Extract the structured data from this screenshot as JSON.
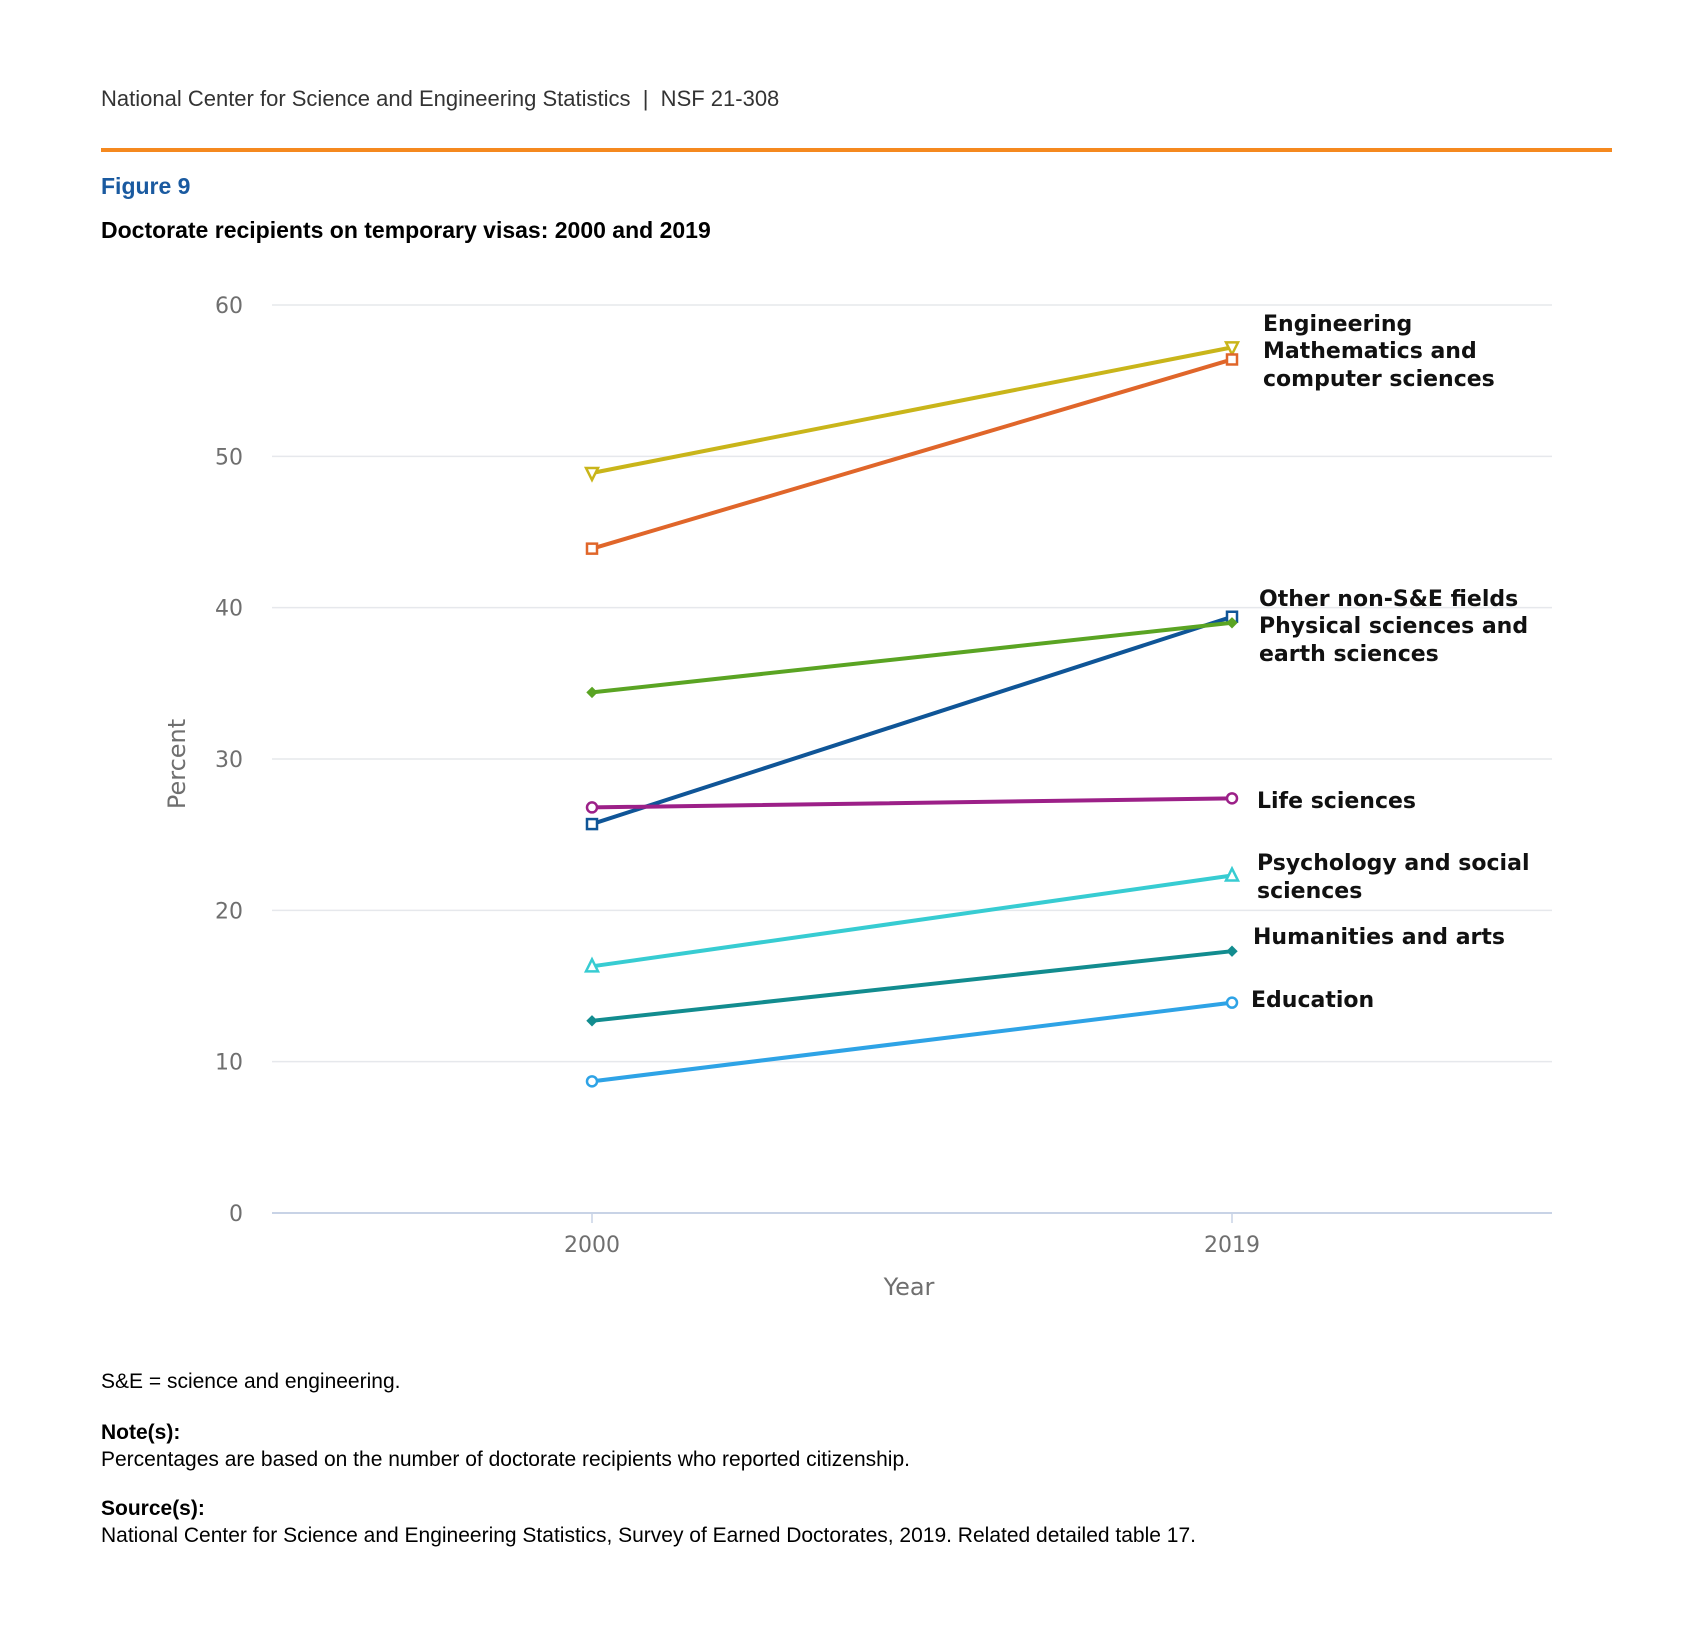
{
  "header": {
    "text": "National Center for Science and Engineering Statistics  |  NSF 21-308",
    "rule_color": "#f5891f"
  },
  "figure": {
    "label": "Figure 9",
    "title": "Doctorate recipients on temporary visas: 2000 and 2019"
  },
  "chart_data": {
    "type": "line",
    "x": [
      "2000",
      "2019"
    ],
    "xlabel": "Year",
    "ylabel": "Percent",
    "ylim": [
      0,
      60
    ],
    "yticks": [
      0,
      10,
      20,
      30,
      40,
      50,
      60
    ],
    "grid": true,
    "legend": "direct labels at line ends (right)",
    "series": [
      {
        "name": "Engineering",
        "values": [
          48.9,
          57.2
        ],
        "color": "#c9b51a",
        "marker": "triangle-down",
        "label_lines": [
          "Engineering"
        ]
      },
      {
        "name": "Mathematics and computer sciences",
        "values": [
          43.9,
          56.4
        ],
        "color": "#e0662a",
        "marker": "square",
        "label_lines": [
          "Mathematics and",
          "computer sciences"
        ]
      },
      {
        "name": "Other non-S&E fields",
        "values": [
          25.7,
          39.4
        ],
        "color": "#0f5597",
        "marker": "square",
        "label_lines": [
          "Other non-S&E fields"
        ]
      },
      {
        "name": "Physical sciences and earth sciences",
        "values": [
          34.4,
          39.0
        ],
        "color": "#5aa423",
        "marker": "diamond",
        "label_lines": [
          "Physical sciences and",
          "earth sciences"
        ]
      },
      {
        "name": "Life sciences",
        "values": [
          26.8,
          27.4
        ],
        "color": "#9c2088",
        "marker": "circle",
        "label_lines": [
          "Life sciences"
        ]
      },
      {
        "name": "Psychology and social sciences",
        "values": [
          16.3,
          22.3
        ],
        "color": "#37ccd2",
        "marker": "triangle-up",
        "label_lines": [
          "Psychology and social",
          "sciences"
        ]
      },
      {
        "name": "Humanities and arts",
        "values": [
          12.7,
          17.3
        ],
        "color": "#128c8f",
        "marker": "diamond",
        "label_lines": [
          "Humanities and arts"
        ]
      },
      {
        "name": "Education",
        "values": [
          8.7,
          13.9
        ],
        "color": "#2ea3e6",
        "marker": "circle",
        "label_lines": [
          "Education"
        ]
      }
    ]
  },
  "footer": {
    "abbrev": "S&E = science and engineering.",
    "notes_heading": "Note(s):",
    "notes_text": "Percentages are based on the number of doctorate recipients who reported citizenship.",
    "source_heading": "Source(s):",
    "source_text": "National Center for Science and Engineering Statistics, Survey of Earned Doctorates, 2019. Related detailed table 17."
  }
}
